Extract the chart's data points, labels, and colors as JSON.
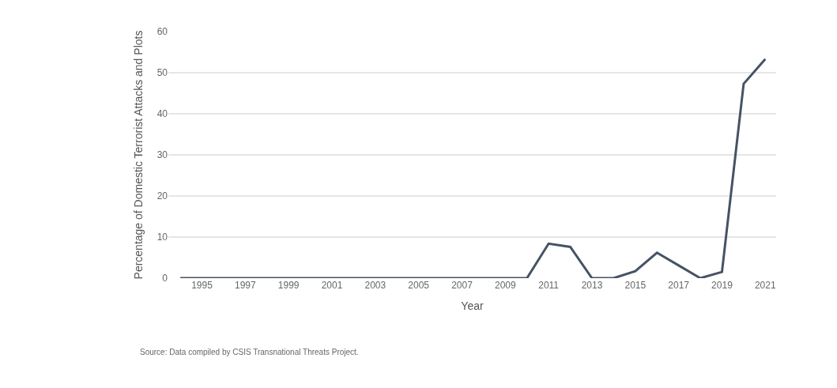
{
  "chart_data": {
    "type": "line",
    "xlabel": "Year",
    "ylabel": "Percentage of Domestic Terrorist Attacks and Plots",
    "x": [
      1994,
      1995,
      1996,
      1997,
      1998,
      1999,
      2000,
      2001,
      2002,
      2003,
      2004,
      2005,
      2006,
      2007,
      2008,
      2009,
      2010,
      2011,
      2012,
      2013,
      2014,
      2015,
      2016,
      2017,
      2018,
      2019,
      2020,
      2021
    ],
    "series": [
      {
        "color": "#465265",
        "values": [
          0,
          0,
          0,
          0,
          0,
          0,
          0,
          0,
          0,
          0,
          0,
          0,
          0,
          0,
          0,
          0,
          0,
          8.4,
          7.6,
          0,
          0,
          1.7,
          6.2,
          3.1,
          0,
          1.5,
          47.3,
          53.3
        ]
      }
    ],
    "xlim": [
      1993.45,
      2021.5
    ],
    "xticks": [
      1995,
      1997,
      1999,
      2001,
      2003,
      2005,
      2007,
      2009,
      2011,
      2013,
      2015,
      2017,
      2019,
      2021
    ],
    "ylim": [
      0,
      60
    ],
    "yticks": [
      0,
      10,
      20,
      30,
      40,
      50,
      60
    ],
    "grid": "y",
    "marker": "none",
    "line_style": "solid",
    "annotations": [
      "Source: Data compiled by CSIS Transnational Threats Project."
    ]
  }
}
